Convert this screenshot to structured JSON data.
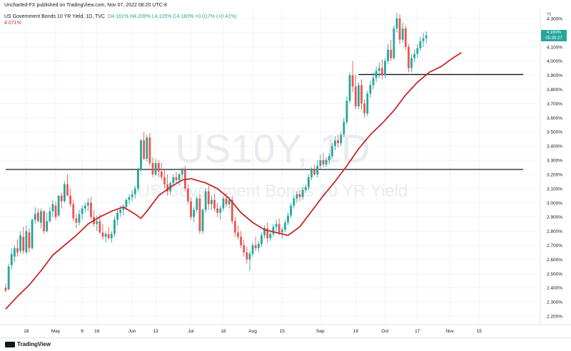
{
  "header": {
    "credit": "Uncharted-FX published on TradingView.com, Nov 07, 2022 08:20 UTC-8",
    "symbol_line": "US Government Bonds 10 YR Yield, 1D, TVC",
    "ohlc": "O4.161%  H4.209%  L4.125%  C4.180%  +0.017% (+0.41%)",
    "ma_value": "4.071%"
  },
  "watermark": {
    "symbol": "US10Y, 1D",
    "name": "US Government Bonds 10 YR Yield"
  },
  "price_badge": {
    "price": "4.180%",
    "countdown": "05:39:27"
  },
  "footer": {
    "brand": "TradingView"
  },
  "colors": {
    "up": "#26a69a",
    "down": "#ef5350",
    "ma": "#c62828",
    "level": "#131722",
    "grid": "#f0f3fa"
  },
  "chart_data": {
    "type": "candlestick",
    "y_unit": "%",
    "ylim": [
      2.14,
      4.37
    ],
    "y_ticks": [
      "4.300%",
      "4.200%",
      "4.100%",
      "4.000%",
      "3.900%",
      "3.800%",
      "3.700%",
      "3.600%",
      "3.500%",
      "3.400%",
      "3.300%",
      "3.200%",
      "3.100%",
      "3.000%",
      "2.900%",
      "2.800%",
      "2.700%",
      "2.600%",
      "2.500%",
      "2.400%",
      "2.300%",
      "2.200%"
    ],
    "y_tick_values": [
      4.3,
      4.2,
      4.1,
      4.0,
      3.9,
      3.8,
      3.7,
      3.6,
      3.5,
      3.4,
      3.3,
      3.2,
      3.1,
      3.0,
      2.9,
      2.8,
      2.7,
      2.6,
      2.5,
      2.4,
      2.3,
      2.2
    ],
    "x_ticks": [
      {
        "label": "18",
        "index": 7
      },
      {
        "label": "May",
        "index": 17
      },
      {
        "label": "9",
        "index": 26
      },
      {
        "label": "16",
        "index": 31
      },
      {
        "label": "Jun",
        "index": 43
      },
      {
        "label": "13",
        "index": 51
      },
      {
        "label": "Jul",
        "index": 63
      },
      {
        "label": "18",
        "index": 74
      },
      {
        "label": "Aug",
        "index": 84
      },
      {
        "label": "15",
        "index": 94
      },
      {
        "label": "Sep",
        "index": 107
      },
      {
        "label": "19",
        "index": 119
      },
      {
        "label": "Oct",
        "index": 129
      },
      {
        "label": "17",
        "index": 140
      },
      {
        "label": "Nov",
        "index": 151
      },
      {
        "label": "15",
        "index": 161
      }
    ],
    "horizontal_levels": [
      {
        "value": 3.235,
        "from_index": 0,
        "to_index": 176
      },
      {
        "value": 3.905,
        "from_index": 120,
        "to_index": 176
      }
    ],
    "moving_average": [
      [
        0,
        2.25
      ],
      [
        4,
        2.34
      ],
      [
        8,
        2.42
      ],
      [
        12,
        2.52
      ],
      [
        16,
        2.63
      ],
      [
        20,
        2.7
      ],
      [
        24,
        2.77
      ],
      [
        28,
        2.85
      ],
      [
        32,
        2.9
      ],
      [
        36,
        2.94
      ],
      [
        40,
        2.97
      ],
      [
        44,
        2.92
      ],
      [
        46,
        2.89
      ],
      [
        48,
        2.94
      ],
      [
        52,
        3.05
      ],
      [
        56,
        3.11
      ],
      [
        60,
        3.16
      ],
      [
        63,
        3.17
      ],
      [
        68,
        3.14
      ],
      [
        72,
        3.1
      ],
      [
        76,
        3.03
      ],
      [
        80,
        2.93
      ],
      [
        84,
        2.86
      ],
      [
        88,
        2.81
      ],
      [
        92,
        2.79
      ],
      [
        96,
        2.77
      ],
      [
        100,
        2.83
      ],
      [
        104,
        2.94
      ],
      [
        108,
        3.05
      ],
      [
        112,
        3.15
      ],
      [
        116,
        3.26
      ],
      [
        120,
        3.38
      ],
      [
        124,
        3.48
      ],
      [
        128,
        3.56
      ],
      [
        132,
        3.65
      ],
      [
        136,
        3.76
      ],
      [
        140,
        3.85
      ],
      [
        144,
        3.92
      ],
      [
        148,
        3.96
      ],
      [
        152,
        4.02
      ],
      [
        155,
        4.06
      ]
    ],
    "candles": [
      {
        "o": 2.4,
        "h": 2.43,
        "l": 2.37,
        "c": 2.38
      },
      {
        "o": 2.39,
        "h": 2.57,
        "l": 2.38,
        "c": 2.55
      },
      {
        "o": 2.56,
        "h": 2.68,
        "l": 2.53,
        "c": 2.64
      },
      {
        "o": 2.62,
        "h": 2.7,
        "l": 2.58,
        "c": 2.68
      },
      {
        "o": 2.68,
        "h": 2.74,
        "l": 2.62,
        "c": 2.65
      },
      {
        "o": 2.66,
        "h": 2.8,
        "l": 2.64,
        "c": 2.77
      },
      {
        "o": 2.76,
        "h": 2.83,
        "l": 2.64,
        "c": 2.66
      },
      {
        "o": 2.65,
        "h": 2.84,
        "l": 2.64,
        "c": 2.8
      },
      {
        "o": 2.79,
        "h": 2.82,
        "l": 2.65,
        "c": 2.68
      },
      {
        "o": 2.68,
        "h": 2.89,
        "l": 2.67,
        "c": 2.88
      },
      {
        "o": 2.88,
        "h": 2.97,
        "l": 2.85,
        "c": 2.92
      },
      {
        "o": 2.93,
        "h": 2.96,
        "l": 2.86,
        "c": 2.87
      },
      {
        "o": 2.86,
        "h": 2.96,
        "l": 2.82,
        "c": 2.94
      },
      {
        "o": 2.94,
        "h": 2.95,
        "l": 2.78,
        "c": 2.8
      },
      {
        "o": 2.8,
        "h": 2.93,
        "l": 2.79,
        "c": 2.87
      },
      {
        "o": 2.87,
        "h": 2.97,
        "l": 2.86,
        "c": 2.94
      },
      {
        "o": 2.94,
        "h": 3.02,
        "l": 2.9,
        "c": 2.99
      },
      {
        "o": 2.98,
        "h": 3.01,
        "l": 2.88,
        "c": 2.9
      },
      {
        "o": 2.91,
        "h": 3.05,
        "l": 2.9,
        "c": 3.05
      },
      {
        "o": 3.05,
        "h": 3.07,
        "l": 2.96,
        "c": 3.01
      },
      {
        "o": 3.01,
        "h": 3.15,
        "l": 3.0,
        "c": 3.13
      },
      {
        "o": 3.13,
        "h": 3.2,
        "l": 3.05,
        "c": 3.05
      },
      {
        "o": 3.05,
        "h": 3.1,
        "l": 2.97,
        "c": 2.99
      },
      {
        "o": 2.99,
        "h": 3.02,
        "l": 2.87,
        "c": 2.89
      },
      {
        "o": 2.89,
        "h": 2.92,
        "l": 2.82,
        "c": 2.86
      },
      {
        "o": 2.86,
        "h": 2.95,
        "l": 2.84,
        "c": 2.92
      },
      {
        "o": 2.92,
        "h": 2.98,
        "l": 2.88,
        "c": 2.96
      },
      {
        "o": 2.96,
        "h": 3.0,
        "l": 2.93,
        "c": 2.98
      },
      {
        "o": 2.98,
        "h": 3.03,
        "l": 2.94,
        "c": 3.0
      },
      {
        "o": 3.0,
        "h": 3.04,
        "l": 2.88,
        "c": 2.9
      },
      {
        "o": 2.9,
        "h": 2.95,
        "l": 2.83,
        "c": 2.85
      },
      {
        "o": 2.85,
        "h": 2.91,
        "l": 2.8,
        "c": 2.87
      },
      {
        "o": 2.87,
        "h": 2.92,
        "l": 2.78,
        "c": 2.79
      },
      {
        "o": 2.79,
        "h": 2.85,
        "l": 2.74,
        "c": 2.76
      },
      {
        "o": 2.76,
        "h": 2.8,
        "l": 2.72,
        "c": 2.78
      },
      {
        "o": 2.78,
        "h": 2.83,
        "l": 2.74,
        "c": 2.75
      },
      {
        "o": 2.75,
        "h": 2.8,
        "l": 2.72,
        "c": 2.78
      },
      {
        "o": 2.78,
        "h": 2.9,
        "l": 2.76,
        "c": 2.88
      },
      {
        "o": 2.88,
        "h": 2.95,
        "l": 2.84,
        "c": 2.93
      },
      {
        "o": 2.93,
        "h": 2.98,
        "l": 2.9,
        "c": 2.95
      },
      {
        "o": 2.95,
        "h": 2.99,
        "l": 2.91,
        "c": 2.97
      },
      {
        "o": 2.97,
        "h": 3.03,
        "l": 2.95,
        "c": 3.02
      },
      {
        "o": 3.02,
        "h": 3.06,
        "l": 2.99,
        "c": 3.04
      },
      {
        "o": 3.04,
        "h": 3.09,
        "l": 3.01,
        "c": 3.06
      },
      {
        "o": 3.06,
        "h": 3.12,
        "l": 3.03,
        "c": 3.1
      },
      {
        "o": 3.1,
        "h": 3.25,
        "l": 3.08,
        "c": 3.23
      },
      {
        "o": 3.23,
        "h": 3.45,
        "l": 3.22,
        "c": 3.44
      },
      {
        "o": 3.44,
        "h": 3.5,
        "l": 3.3,
        "c": 3.31
      },
      {
        "o": 3.31,
        "h": 3.48,
        "l": 3.29,
        "c": 3.46
      },
      {
        "o": 3.46,
        "h": 3.49,
        "l": 3.26,
        "c": 3.28
      },
      {
        "o": 3.28,
        "h": 3.32,
        "l": 3.18,
        "c": 3.2
      },
      {
        "o": 3.2,
        "h": 3.31,
        "l": 3.19,
        "c": 3.28
      },
      {
        "o": 3.28,
        "h": 3.3,
        "l": 3.18,
        "c": 3.22
      },
      {
        "o": 3.22,
        "h": 3.28,
        "l": 3.16,
        "c": 3.18
      },
      {
        "o": 3.18,
        "h": 3.23,
        "l": 3.1,
        "c": 3.13
      },
      {
        "o": 3.13,
        "h": 3.2,
        "l": 3.05,
        "c": 3.08
      },
      {
        "o": 3.08,
        "h": 3.15,
        "l": 3.06,
        "c": 3.14
      },
      {
        "o": 3.14,
        "h": 3.2,
        "l": 3.12,
        "c": 3.18
      },
      {
        "o": 3.18,
        "h": 3.22,
        "l": 3.14,
        "c": 3.16
      },
      {
        "o": 3.16,
        "h": 3.21,
        "l": 3.12,
        "c": 3.2
      },
      {
        "o": 3.2,
        "h": 3.25,
        "l": 3.17,
        "c": 3.23
      },
      {
        "o": 3.23,
        "h": 3.26,
        "l": 3.08,
        "c": 3.1
      },
      {
        "o": 3.1,
        "h": 3.13,
        "l": 2.99,
        "c": 3.01
      },
      {
        "o": 3.01,
        "h": 3.04,
        "l": 2.88,
        "c": 2.9
      },
      {
        "o": 2.9,
        "h": 2.97,
        "l": 2.86,
        "c": 2.95
      },
      {
        "o": 2.95,
        "h": 3.05,
        "l": 2.93,
        "c": 3.03
      },
      {
        "o": 3.03,
        "h": 3.06,
        "l": 2.78,
        "c": 2.8
      },
      {
        "o": 2.8,
        "h": 2.96,
        "l": 2.78,
        "c": 2.95
      },
      {
        "o": 2.95,
        "h": 3.1,
        "l": 2.93,
        "c": 3.08
      },
      {
        "o": 3.08,
        "h": 3.12,
        "l": 2.95,
        "c": 2.99
      },
      {
        "o": 2.99,
        "h": 3.05,
        "l": 2.95,
        "c": 3.02
      },
      {
        "o": 3.02,
        "h": 3.06,
        "l": 2.94,
        "c": 2.96
      },
      {
        "o": 2.96,
        "h": 3.0,
        "l": 2.9,
        "c": 2.93
      },
      {
        "o": 2.93,
        "h": 2.98,
        "l": 2.88,
        "c": 2.96
      },
      {
        "o": 2.96,
        "h": 3.05,
        "l": 2.94,
        "c": 3.03
      },
      {
        "o": 3.03,
        "h": 3.07,
        "l": 2.97,
        "c": 2.99
      },
      {
        "o": 2.99,
        "h": 3.04,
        "l": 2.96,
        "c": 3.02
      },
      {
        "o": 3.02,
        "h": 3.05,
        "l": 2.85,
        "c": 2.87
      },
      {
        "o": 2.87,
        "h": 2.9,
        "l": 2.76,
        "c": 2.79
      },
      {
        "o": 2.79,
        "h": 2.84,
        "l": 2.74,
        "c": 2.76
      },
      {
        "o": 2.76,
        "h": 2.8,
        "l": 2.68,
        "c": 2.7
      },
      {
        "o": 2.7,
        "h": 2.74,
        "l": 2.62,
        "c": 2.65
      },
      {
        "o": 2.65,
        "h": 2.69,
        "l": 2.57,
        "c": 2.6
      },
      {
        "o": 2.6,
        "h": 2.66,
        "l": 2.52,
        "c": 2.64
      },
      {
        "o": 2.64,
        "h": 2.72,
        "l": 2.62,
        "c": 2.7
      },
      {
        "o": 2.7,
        "h": 2.76,
        "l": 2.66,
        "c": 2.68
      },
      {
        "o": 2.68,
        "h": 2.73,
        "l": 2.65,
        "c": 2.71
      },
      {
        "o": 2.71,
        "h": 2.79,
        "l": 2.69,
        "c": 2.77
      },
      {
        "o": 2.77,
        "h": 2.84,
        "l": 2.75,
        "c": 2.82
      },
      {
        "o": 2.82,
        "h": 2.86,
        "l": 2.72,
        "c": 2.75
      },
      {
        "o": 2.75,
        "h": 2.8,
        "l": 2.73,
        "c": 2.78
      },
      {
        "o": 2.78,
        "h": 2.85,
        "l": 2.76,
        "c": 2.83
      },
      {
        "o": 2.83,
        "h": 2.88,
        "l": 2.8,
        "c": 2.85
      },
      {
        "o": 2.85,
        "h": 2.89,
        "l": 2.77,
        "c": 2.79
      },
      {
        "o": 2.79,
        "h": 2.83,
        "l": 2.75,
        "c": 2.81
      },
      {
        "o": 2.81,
        "h": 2.88,
        "l": 2.79,
        "c": 2.86
      },
      {
        "o": 2.86,
        "h": 2.93,
        "l": 2.84,
        "c": 2.91
      },
      {
        "o": 2.91,
        "h": 3.0,
        "l": 2.89,
        "c": 2.98
      },
      {
        "o": 2.98,
        "h": 3.05,
        "l": 2.96,
        "c": 3.03
      },
      {
        "o": 3.03,
        "h": 3.08,
        "l": 3.0,
        "c": 3.06
      },
      {
        "o": 3.06,
        "h": 3.09,
        "l": 3.01,
        "c": 3.04
      },
      {
        "o": 3.04,
        "h": 3.11,
        "l": 3.02,
        "c": 3.09
      },
      {
        "o": 3.09,
        "h": 3.13,
        "l": 3.07,
        "c": 3.11
      },
      {
        "o": 3.11,
        "h": 3.2,
        "l": 3.09,
        "c": 3.18
      },
      {
        "o": 3.18,
        "h": 3.25,
        "l": 3.16,
        "c": 3.23
      },
      {
        "o": 3.23,
        "h": 3.27,
        "l": 3.19,
        "c": 3.2
      },
      {
        "o": 3.2,
        "h": 3.3,
        "l": 3.18,
        "c": 3.26
      },
      {
        "o": 3.26,
        "h": 3.34,
        "l": 3.23,
        "c": 3.3
      },
      {
        "o": 3.3,
        "h": 3.35,
        "l": 3.25,
        "c": 3.27
      },
      {
        "o": 3.27,
        "h": 3.32,
        "l": 3.25,
        "c": 3.3
      },
      {
        "o": 3.3,
        "h": 3.35,
        "l": 3.27,
        "c": 3.33
      },
      {
        "o": 3.33,
        "h": 3.42,
        "l": 3.31,
        "c": 3.4
      },
      {
        "o": 3.4,
        "h": 3.47,
        "l": 3.37,
        "c": 3.44
      },
      {
        "o": 3.44,
        "h": 3.48,
        "l": 3.39,
        "c": 3.42
      },
      {
        "o": 3.42,
        "h": 3.5,
        "l": 3.4,
        "c": 3.48
      },
      {
        "o": 3.48,
        "h": 3.6,
        "l": 3.46,
        "c": 3.57
      },
      {
        "o": 3.57,
        "h": 3.75,
        "l": 3.55,
        "c": 3.72
      },
      {
        "o": 3.72,
        "h": 3.92,
        "l": 3.7,
        "c": 3.9
      },
      {
        "o": 3.9,
        "h": 4.0,
        "l": 3.78,
        "c": 3.82
      },
      {
        "o": 3.82,
        "h": 3.9,
        "l": 3.66,
        "c": 3.68
      },
      {
        "o": 3.68,
        "h": 3.85,
        "l": 3.66,
        "c": 3.83
      },
      {
        "o": 3.83,
        "h": 3.87,
        "l": 3.66,
        "c": 3.7
      },
      {
        "o": 3.7,
        "h": 3.73,
        "l": 3.6,
        "c": 3.63
      },
      {
        "o": 3.63,
        "h": 3.79,
        "l": 3.61,
        "c": 3.77
      },
      {
        "o": 3.77,
        "h": 3.86,
        "l": 3.74,
        "c": 3.83
      },
      {
        "o": 3.83,
        "h": 3.92,
        "l": 3.8,
        "c": 3.88
      },
      {
        "o": 3.88,
        "h": 3.96,
        "l": 3.85,
        "c": 3.93
      },
      {
        "o": 3.93,
        "h": 3.99,
        "l": 3.88,
        "c": 3.95
      },
      {
        "o": 3.95,
        "h": 4.01,
        "l": 3.87,
        "c": 3.9
      },
      {
        "o": 3.9,
        "h": 4.02,
        "l": 3.88,
        "c": 4.0
      },
      {
        "o": 4.0,
        "h": 4.12,
        "l": 3.98,
        "c": 4.08
      },
      {
        "o": 4.08,
        "h": 4.15,
        "l": 4.0,
        "c": 4.02
      },
      {
        "o": 4.02,
        "h": 4.25,
        "l": 4.01,
        "c": 4.23
      },
      {
        "o": 4.23,
        "h": 4.34,
        "l": 4.2,
        "c": 4.3
      },
      {
        "o": 4.3,
        "h": 4.33,
        "l": 4.12,
        "c": 4.15
      },
      {
        "o": 4.15,
        "h": 4.27,
        "l": 4.13,
        "c": 4.23
      },
      {
        "o": 4.23,
        "h": 4.25,
        "l": 4.08,
        "c": 4.1
      },
      {
        "o": 4.1,
        "h": 4.12,
        "l": 3.92,
        "c": 3.95
      },
      {
        "o": 3.95,
        "h": 4.05,
        "l": 3.92,
        "c": 4.02
      },
      {
        "o": 4.02,
        "h": 4.08,
        "l": 3.99,
        "c": 4.05
      },
      {
        "o": 4.05,
        "h": 4.12,
        "l": 4.02,
        "c": 4.09
      },
      {
        "o": 4.09,
        "h": 4.17,
        "l": 4.07,
        "c": 4.14
      },
      {
        "o": 4.14,
        "h": 4.2,
        "l": 4.1,
        "c": 4.16
      },
      {
        "o": 4.161,
        "h": 4.209,
        "l": 4.125,
        "c": 4.18
      }
    ]
  }
}
